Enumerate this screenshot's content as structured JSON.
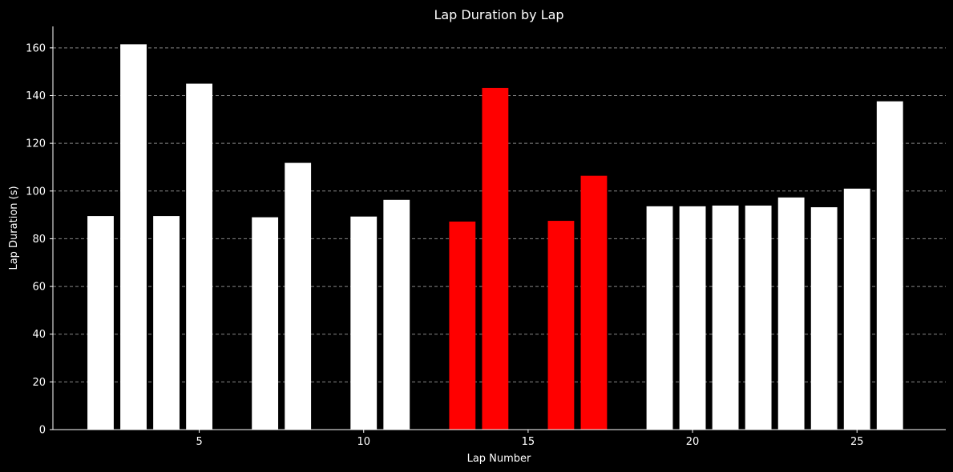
{
  "chart_data": {
    "type": "bar",
    "title": "Lap Duration by Lap",
    "xlabel": "Lap Number",
    "ylabel": "Lap Duration (s)",
    "x": [
      2,
      3,
      4,
      5,
      7,
      8,
      10,
      11,
      13,
      14,
      16,
      17,
      19,
      20,
      21,
      22,
      23,
      24,
      25,
      26
    ],
    "values": [
      89.5,
      161.5,
      89.5,
      145.0,
      89.0,
      111.8,
      89.3,
      96.3,
      87.2,
      143.2,
      87.5,
      106.4,
      93.6,
      93.6,
      93.9,
      93.9,
      97.3,
      93.2,
      101.0,
      137.6
    ],
    "highlighted": [
      false,
      false,
      false,
      false,
      false,
      false,
      false,
      false,
      true,
      true,
      true,
      true,
      false,
      false,
      false,
      false,
      false,
      false,
      false,
      false
    ],
    "xlim": [
      0.55,
      27.7
    ],
    "ylim": [
      0,
      169
    ],
    "xticks": [
      5,
      10,
      15,
      20,
      25
    ],
    "yticks": [
      0,
      20,
      40,
      60,
      80,
      100,
      120,
      140,
      160
    ],
    "grid": "y-dashed",
    "colors": {
      "bar": "#ffffff",
      "highlight": "#ff0000",
      "background": "#000000",
      "axis": "#ffffff",
      "grid": "#888888"
    }
  }
}
